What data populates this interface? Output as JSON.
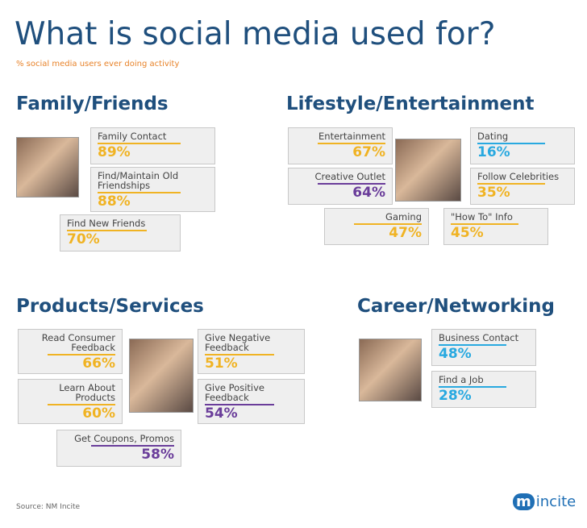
{
  "header": {
    "title": "What is social media used for?",
    "subtitle": "% social media users ever doing activity"
  },
  "sections": [
    {
      "heading": "Family/Friends",
      "items": [
        {
          "label": "Family Contact",
          "percent": "89%",
          "color": "#f0b323"
        },
        {
          "label": "Find/Maintain Old Friendships",
          "percent": "88%",
          "color": "#f0b323"
        },
        {
          "label": "Find New Friends",
          "percent": "70%",
          "color": "#f0b323"
        }
      ]
    },
    {
      "heading": "Lifestyle/Entertainment",
      "items": [
        {
          "label": "Entertainment",
          "percent": "67%",
          "color": "#f0b323"
        },
        {
          "label": "Dating",
          "percent": "16%",
          "color": "#29a9e0"
        },
        {
          "label": "Creative Outlet",
          "percent": "64%",
          "color": "#6a3d9a"
        },
        {
          "label": "Follow Celebrities",
          "percent": "35%",
          "color": "#f0b323"
        },
        {
          "label": "Gaming",
          "percent": "47%",
          "color": "#f0b323"
        },
        {
          "label": "\"How To\" Info",
          "percent": "45%",
          "color": "#f0b323"
        }
      ]
    },
    {
      "heading": "Products/Services",
      "items": [
        {
          "label": "Read Consumer Feedback",
          "percent": "66%",
          "color": "#f0b323"
        },
        {
          "label": "Learn About Products",
          "percent": "60%",
          "color": "#f0b323"
        },
        {
          "label": "Give Negative Feedback",
          "percent": "51%",
          "color": "#f0b323"
        },
        {
          "label": "Give Positive Feedback",
          "percent": "54%",
          "color": "#6a3d9a"
        },
        {
          "label": "Get Coupons, Promos",
          "percent": "58%",
          "color": "#6a3d9a"
        }
      ]
    },
    {
      "heading": "Career/Networking",
      "items": [
        {
          "label": "Business Contact",
          "percent": "48%",
          "color": "#29a9e0"
        },
        {
          "label": "Find a Job",
          "percent": "28%",
          "color": "#29a9e0"
        }
      ]
    }
  ],
  "footer": {
    "source": "Source: NM Incite",
    "logo": "incite"
  }
}
